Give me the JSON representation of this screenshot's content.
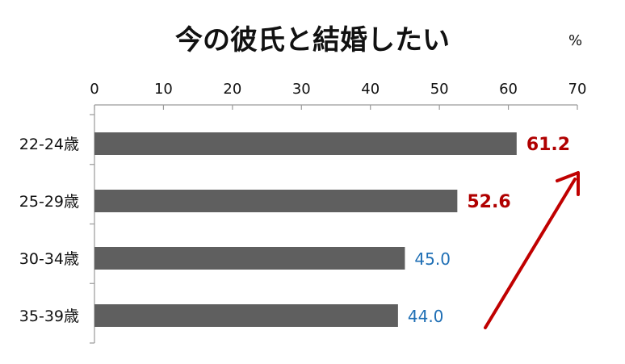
{
  "chart_data": {
    "type": "bar",
    "orientation": "horizontal",
    "title": "今の彼氏と結婚したい",
    "unit_label": "%",
    "categories": [
      "22-24歳",
      "25-29歳",
      "30-34歳",
      "35-39歳"
    ],
    "values": [
      61.2,
      52.6,
      45.0,
      44.0
    ],
    "data_labels": [
      "61.2",
      "52.6",
      "45.0",
      "44.0"
    ],
    "xlim": [
      0,
      70
    ],
    "x_ticks": [
      "0",
      "10",
      "20",
      "30",
      "40",
      "50",
      "60",
      "70"
    ],
    "x_tick_values": [
      0,
      10,
      20,
      30,
      40,
      50,
      60,
      70
    ],
    "axis_position": "top",
    "grid": false,
    "legend": "none",
    "bar_color": "#5f5f5f",
    "highlight_label_color": "#b00000",
    "normal_label_color": "#1f6fb5",
    "highlighted_categories": [
      0,
      1
    ],
    "annotation": {
      "type": "arrow",
      "color": "#c00000",
      "direction": "up-right"
    }
  }
}
